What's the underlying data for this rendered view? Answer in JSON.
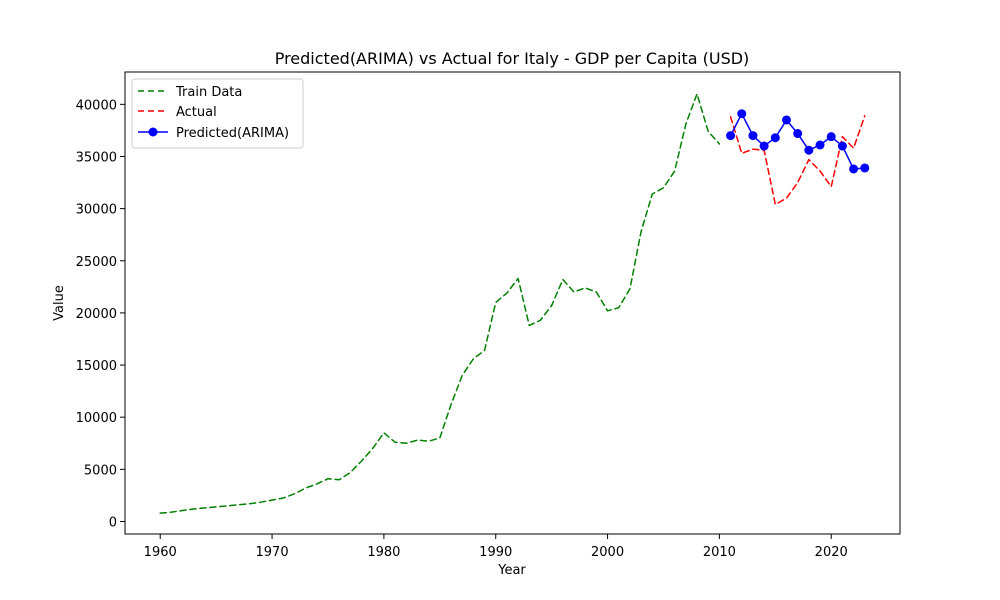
{
  "chart_data": {
    "type": "line",
    "title": "Predicted(ARIMA) vs Actual for Italy - GDP per Capita (USD)",
    "xlabel": "Year",
    "ylabel": "Value",
    "xlim": [
      1956.85,
      2026.15
    ],
    "ylim": [
      -1200,
      43100
    ],
    "x_ticks": [
      1960,
      1970,
      1980,
      1990,
      2000,
      2010,
      2020
    ],
    "y_ticks": [
      0,
      5000,
      10000,
      15000,
      20000,
      25000,
      30000,
      35000,
      40000
    ],
    "grid": false,
    "legend_position": "top-left",
    "series": [
      {
        "name": "Train Data",
        "color": "#008000",
        "line_style": "dashed",
        "marker": "none",
        "x": [
          1960,
          1961,
          1962,
          1963,
          1964,
          1965,
          1966,
          1967,
          1968,
          1969,
          1970,
          1971,
          1972,
          1973,
          1974,
          1975,
          1976,
          1977,
          1978,
          1979,
          1980,
          1981,
          1982,
          1983,
          1984,
          1985,
          1986,
          1987,
          1988,
          1989,
          1990,
          1991,
          1992,
          1993,
          1994,
          1995,
          1996,
          1997,
          1998,
          1999,
          2000,
          2001,
          2002,
          2003,
          2004,
          2005,
          2006,
          2007,
          2008,
          2009,
          2010
        ],
        "y": [
          800,
          900,
          1050,
          1200,
          1300,
          1400,
          1500,
          1600,
          1700,
          1850,
          2050,
          2250,
          2650,
          3200,
          3600,
          4100,
          4000,
          4700,
          5800,
          7000,
          8500,
          7600,
          7500,
          7800,
          7700,
          8000,
          11200,
          14000,
          15600,
          16400,
          21000,
          21900,
          23300,
          18800,
          19300,
          20700,
          23200,
          22000,
          22400,
          22000,
          20200,
          20500,
          22300,
          27800,
          31400,
          32000,
          33600,
          38100,
          41000,
          37400,
          36200
        ]
      },
      {
        "name": "Actual",
        "color": "#ff0000",
        "line_style": "dashed",
        "marker": "none",
        "x": [
          2011,
          2012,
          2013,
          2014,
          2015,
          2016,
          2017,
          2018,
          2019,
          2020,
          2021,
          2022,
          2023
        ],
        "y": [
          38800,
          35300,
          35700,
          35600,
          30400,
          31000,
          32500,
          34700,
          33600,
          32100,
          36900,
          35800,
          38900
        ]
      },
      {
        "name": "Predicted(ARIMA)",
        "color": "#0000ff",
        "line_style": "solid",
        "marker": "circle",
        "x": [
          2011,
          2012,
          2013,
          2014,
          2015,
          2016,
          2017,
          2018,
          2019,
          2020,
          2021,
          2022,
          2023
        ],
        "y": [
          37000,
          39100,
          37000,
          36000,
          36800,
          38500,
          37200,
          35600,
          36100,
          36900,
          36000,
          33800,
          33900
        ]
      }
    ]
  }
}
